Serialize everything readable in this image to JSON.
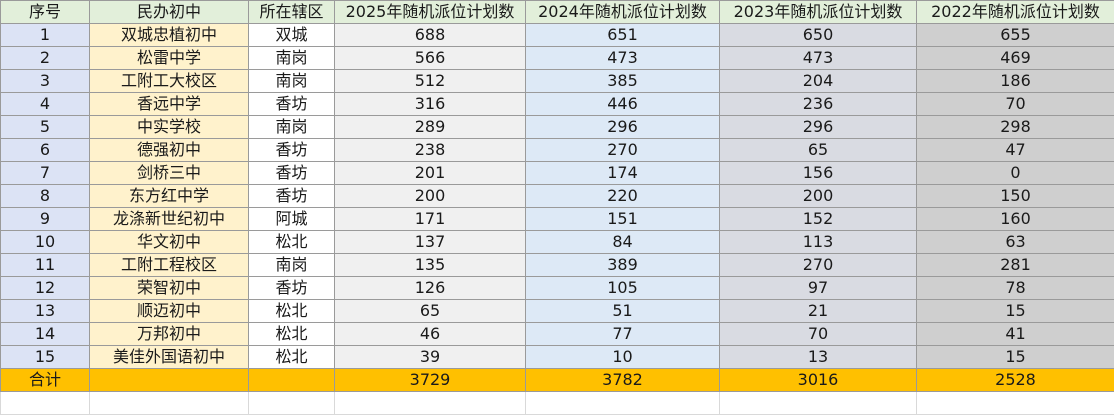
{
  "columns": [
    "序号",
    "民办初中",
    "所在辖区",
    "2025年随机派位计划数",
    "2024年随机派位计划数",
    "2023年随机派位计划数",
    "2022年随机派位计划数"
  ],
  "rows": [
    [
      "1",
      "双城忠植初中",
      "双城",
      "688",
      "651",
      "650",
      "655"
    ],
    [
      "2",
      "松雷中学",
      "南岗",
      "566",
      "473",
      "473",
      "469"
    ],
    [
      "3",
      "工附工大校区",
      "南岗",
      "512",
      "385",
      "204",
      "186"
    ],
    [
      "4",
      "香远中学",
      "香坊",
      "316",
      "446",
      "236",
      "70"
    ],
    [
      "5",
      "中实学校",
      "南岗",
      "289",
      "296",
      "296",
      "298"
    ],
    [
      "6",
      "德强初中",
      "香坊",
      "238",
      "270",
      "65",
      "47"
    ],
    [
      "7",
      "剑桥三中",
      "香坊",
      "201",
      "174",
      "156",
      "0"
    ],
    [
      "8",
      "东方红中学",
      "香坊",
      "200",
      "220",
      "200",
      "150"
    ],
    [
      "9",
      "龙涤新世纪初中",
      "阿城",
      "171",
      "151",
      "152",
      "160"
    ],
    [
      "10",
      "华文初中",
      "松北",
      "137",
      "84",
      "113",
      "63"
    ],
    [
      "11",
      "工附工程校区",
      "南岗",
      "135",
      "389",
      "270",
      "281"
    ],
    [
      "12",
      "荣智初中",
      "香坊",
      "126",
      "105",
      "97",
      "78"
    ],
    [
      "13",
      "顺迈初中",
      "松北",
      "65",
      "51",
      "21",
      "15"
    ],
    [
      "14",
      "万邦初中",
      "松北",
      "46",
      "77",
      "70",
      "41"
    ],
    [
      "15",
      "美佳外国语初中",
      "松北",
      "39",
      "10",
      "13",
      "15"
    ]
  ],
  "total": [
    "合计",
    "",
    "",
    "3729",
    "3782",
    "3016",
    "2528"
  ],
  "colors": {
    "header": "#e2efda",
    "seq": "#dce3f5",
    "school": "#fff2cc",
    "y2025": "#f0f0f0",
    "y2024": "#dde9f6",
    "y2023": "#d9dbe2",
    "y2022": "#cfcfcf",
    "total": "#ffc000"
  }
}
